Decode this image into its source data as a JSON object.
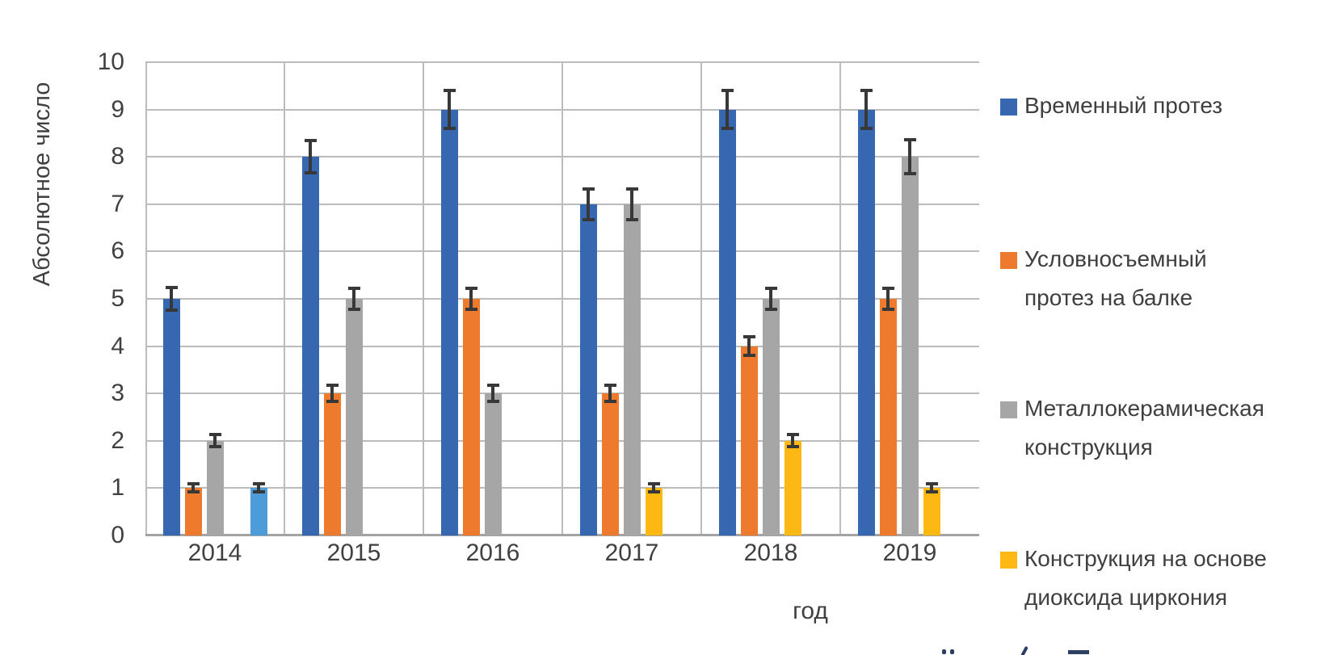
{
  "chart_data": {
    "type": "bar",
    "title": "",
    "ylabel": "Абсолютное число",
    "xlabel": "год",
    "ylim": [
      0,
      10
    ],
    "yticks": [
      0,
      1,
      2,
      3,
      4,
      5,
      6,
      7,
      8,
      9,
      10
    ],
    "categories": [
      "2014",
      "2015",
      "2016",
      "2017",
      "2018",
      "2019"
    ],
    "grid": true,
    "legend_position": "right",
    "colors": {
      "grid": "#bcbcbc",
      "axis_line": "#a3a3a3",
      "error_bar": "#383838",
      "text": "#3f3f3f"
    },
    "series": [
      {
        "key": "vremennyj-protez",
        "name": "Временный протез",
        "legend_lines": [
          "Временный протез"
        ],
        "color": "#3667b0",
        "values": [
          5,
          8,
          9,
          7,
          9,
          9
        ],
        "errors": [
          0.27,
          0.38,
          0.43,
          0.36,
          0.43,
          0.43
        ]
      },
      {
        "key": "uslovnosemnyj-protez-na-balke",
        "name": "Условносъемный протез на балке",
        "legend_lines": [
          "Условносъемный",
          "протез на балке"
        ],
        "color": "#ed7a2d",
        "values": [
          1,
          3,
          5,
          3,
          4,
          5
        ],
        "errors": [
          0.12,
          0.2,
          0.26,
          0.2,
          0.23,
          0.26
        ]
      },
      {
        "key": "metallokeramicheskaya-konstrukciya",
        "name": "Металлокерамическая конструкция",
        "legend_lines": [
          "Металлокерамическая",
          "конструкция"
        ],
        "color": "#a6a6a6",
        "texture": "vertical-stripes",
        "values": [
          2,
          5,
          3,
          7,
          5,
          8
        ],
        "errors": [
          0.16,
          0.26,
          0.2,
          0.36,
          0.26,
          0.39
        ]
      },
      {
        "key": "konstrukciya-na-osnove-dioksida-cirkoniya",
        "name": "Конструкция на основе диоксида циркония",
        "legend_lines": [
          "Конструкция на основе",
          "диоксида циркония"
        ],
        "color": "#fdb813",
        "values": [
          null,
          null,
          null,
          1,
          2,
          1
        ],
        "errors": [
          null,
          null,
          null,
          0.12,
          0.16,
          0.12
        ]
      },
      {
        "key": "unlabeled-series-5",
        "name": "",
        "color": "#4d9bd8",
        "values": [
          1,
          null,
          null,
          null,
          null,
          null
        ],
        "errors": [
          0.12,
          null,
          null,
          null,
          null,
          null
        ]
      }
    ]
  }
}
